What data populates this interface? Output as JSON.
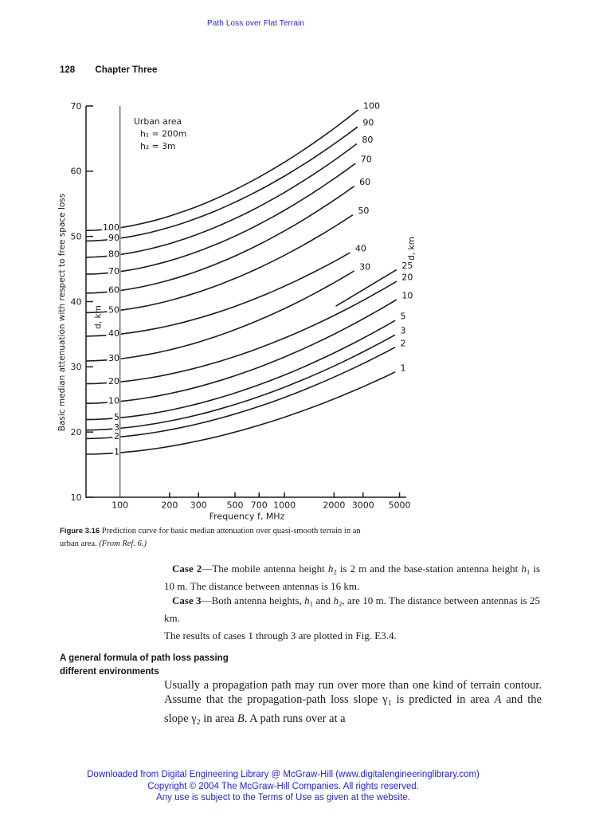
{
  "page": {
    "running_head": "Path Loss over Flat Terrain",
    "page_number": "128",
    "chapter": "Chapter Three"
  },
  "figure": {
    "caption_label": "Figure 3.16",
    "caption_runs": [
      [
        "",
        "  Prediction curve for basic median attenuation over quasi-smooth terrain in an urban area. "
      ],
      [
        "i",
        "(From Ref. 6.)"
      ]
    ]
  },
  "chart_data": {
    "type": "line",
    "x_scale": "log",
    "xlabel": "Frequency f, MHz",
    "ylabel": "Basic median attenuation with respect to free space loss",
    "family_label": "d, km",
    "annotation": [
      "Urban area",
      "h₁ = 200m",
      "h₂ = 3m"
    ],
    "x_ticks": [
      100,
      200,
      300,
      500,
      700,
      1000,
      2000,
      3000,
      5000
    ],
    "y_ticks": [
      10,
      20,
      30,
      40,
      50,
      60,
      70
    ],
    "xlim_mhz": [
      62,
      5500
    ],
    "ylim_db": [
      10,
      70
    ],
    "reference_line_mhz": 100,
    "curves": [
      {
        "d_km": 100,
        "db_at_62mhz": 50.9,
        "end_mhz": 2800,
        "db_at_end": 69.4
      },
      {
        "d_km": 90,
        "db_at_62mhz": 49.3,
        "end_mhz": 2780,
        "db_at_end": 66.8
      },
      {
        "d_km": 80,
        "db_at_62mhz": 46.8,
        "end_mhz": 2750,
        "db_at_end": 64.2
      },
      {
        "d_km": 70,
        "db_at_62mhz": 44.2,
        "end_mhz": 2700,
        "db_at_end": 61.2
      },
      {
        "d_km": 60,
        "db_at_62mhz": 41.3,
        "end_mhz": 2650,
        "db_at_end": 57.7
      },
      {
        "d_km": 50,
        "db_at_62mhz": 38.3,
        "end_mhz": 2600,
        "db_at_end": 53.3
      },
      {
        "d_km": 40,
        "db_at_62mhz": 34.7,
        "end_mhz": 2500,
        "db_at_end": 47.5
      },
      {
        "d_km": 30,
        "db_at_62mhz": 30.9,
        "end_mhz": 2650,
        "db_at_end": 44.7
      },
      {
        "d_km": 25,
        "partial": true,
        "start_mhz": 2050,
        "db_at_start": 39.3,
        "end_mhz": 4800,
        "db_at_end": 44.9
      },
      {
        "d_km": 20,
        "db_at_62mhz": 27.4,
        "end_mhz": 4800,
        "db_at_end": 43.1
      },
      {
        "d_km": 10,
        "db_at_62mhz": 24.4,
        "end_mhz": 4800,
        "db_at_end": 40.3
      },
      {
        "d_km": 5,
        "db_at_62mhz": 21.9,
        "end_mhz": 4700,
        "db_at_end": 37.1
      },
      {
        "d_km": 3,
        "db_at_62mhz": 20.3,
        "end_mhz": 4700,
        "db_at_end": 34.9
      },
      {
        "d_km": 2,
        "db_at_62mhz": 19.0,
        "end_mhz": 4700,
        "db_at_end": 33.0
      },
      {
        "d_km": 1,
        "db_at_62mhz": 16.6,
        "end_mhz": 4700,
        "db_at_end": 29.2
      }
    ]
  },
  "body": {
    "case2": [
      [
        "b",
        "Case 2"
      ],
      [
        "",
        "—The mobile antenna height "
      ],
      [
        "i",
        "h"
      ],
      [
        "sub",
        "2"
      ],
      [
        "",
        " is 2 m and the base-station antenna height "
      ],
      [
        "i",
        "h"
      ],
      [
        "sub",
        "1"
      ],
      [
        "",
        " is 10 m. The distance between antennas is 16 km."
      ]
    ],
    "case3": [
      [
        "b",
        "Case 3"
      ],
      [
        "",
        "—Both antenna heights, "
      ],
      [
        "i",
        "h"
      ],
      [
        "sub",
        "1"
      ],
      [
        "",
        " and "
      ],
      [
        "i",
        "h"
      ],
      [
        "sub",
        "2"
      ],
      [
        "",
        ", are 10 m. The distance between antennas is 25 km."
      ]
    ],
    "results": [
      [
        "",
        "The results of cases 1 through 3 are plotted in Fig. E3.4."
      ]
    ]
  },
  "section": {
    "heading_line1": "A general formula of path loss passing",
    "heading_line2": "different environments",
    "paragraph": [
      [
        "",
        "Usually a propagation path may run over more than one kind of terrain contour. Assume that the propagation-path loss slope "
      ],
      [
        "",
        "γ"
      ],
      [
        "sub",
        "1"
      ],
      [
        "",
        " is predicted in area "
      ],
      [
        "i",
        "A"
      ],
      [
        "",
        " and the slope "
      ],
      [
        "",
        "γ"
      ],
      [
        "sub",
        "2"
      ],
      [
        "",
        " in area "
      ],
      [
        "i",
        "B"
      ],
      [
        "",
        ". A path runs over at a"
      ]
    ]
  },
  "footer": {
    "color": "#2222e6",
    "lines": [
      "Downloaded from Digital Engineering Library @ McGraw-Hill (www.digitalengineeringlibrary.com)",
      "Copyright © 2004 The McGraw-Hill Companies. All rights reserved.",
      "Any use is subject to the Terms of Use as given at the website."
    ]
  }
}
